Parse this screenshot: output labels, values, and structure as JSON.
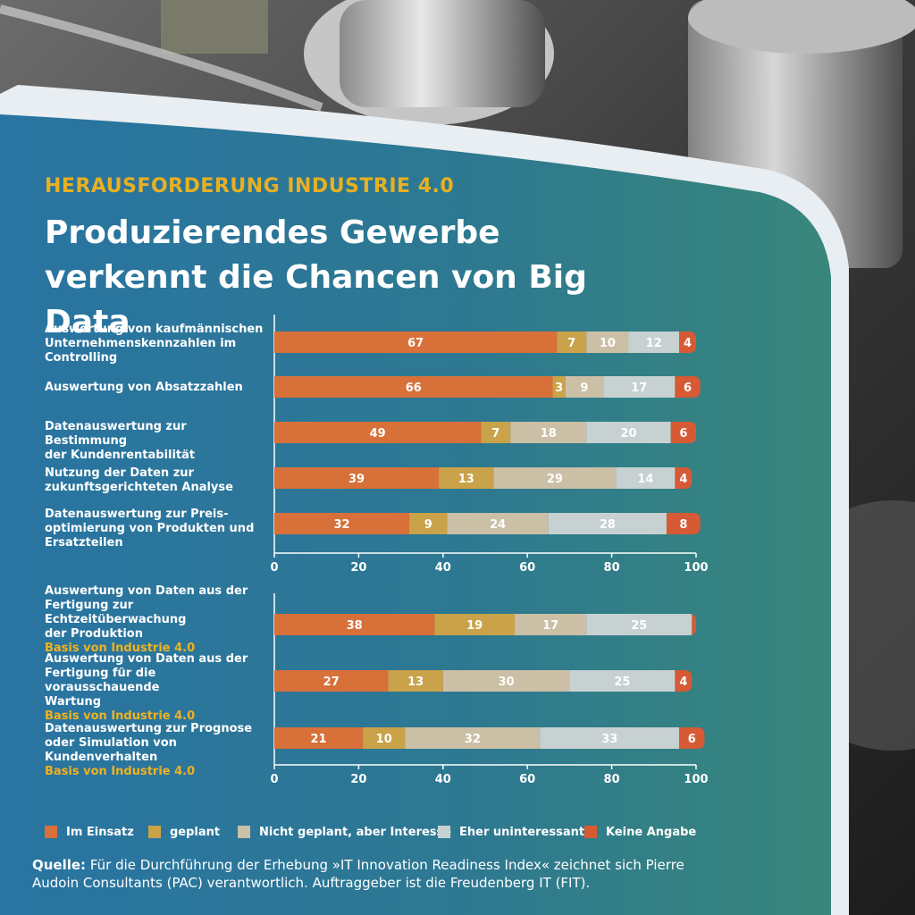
{
  "header": {
    "kicker": "HERAUSFORDERUNG INDUSTRIE 4.0",
    "title": "Produzierendes Gewerbe verkennt die Chancen von Big Data"
  },
  "colors": {
    "im_einsatz": "#d8703a",
    "geplant": "#c9a24a",
    "interesse": "#cbbfa6",
    "uninteressant": "#c7d1d2",
    "keine_angabe": "#d65a34",
    "kicker": "#e8b020",
    "basis": "#f0b21e"
  },
  "chart_data": [
    {
      "type": "bar",
      "orientation": "horizontal",
      "stacked": true,
      "categories": [
        "Auswertung von kaufmännischen Unternehmenskennzahlen im Controlling",
        "Auswertung von Absatzzahlen",
        "Datenauswertung zur Bestimmung der Kundenrentabilität",
        "Nutzung der Daten zur zukunftsgerichteten Analyse",
        "Datenauswertung zur Preisoptimierung von Produkten und Ersatzteilen"
      ],
      "label_lines": [
        [
          "Auswertung von kaufmännischen",
          "Unternehmenskennzahlen im",
          "Controlling"
        ],
        [
          "Auswertung von Absatzzahlen"
        ],
        [
          "Datenauswertung zur Bestimmung",
          "der Kundenrentabilität"
        ],
        [
          "Nutzung der Daten zur",
          "zukunftsgerichteten Analyse"
        ],
        [
          "Datenauswertung zur Preis-",
          "optimierung von Produkten und",
          "Ersatzteilen"
        ]
      ],
      "basis": [
        false,
        false,
        false,
        false,
        false
      ],
      "series": [
        {
          "name": "Im Einsatz",
          "values": [
            67,
            66,
            49,
            39,
            32
          ]
        },
        {
          "name": "geplant",
          "values": [
            7,
            3,
            7,
            13,
            9
          ]
        },
        {
          "name": "Nicht geplant, aber Interesse",
          "values": [
            10,
            9,
            18,
            29,
            24
          ]
        },
        {
          "name": "Eher uninteressant",
          "values": [
            12,
            17,
            20,
            14,
            28
          ]
        },
        {
          "name": "Keine Angabe",
          "values": [
            4,
            6,
            6,
            4,
            8
          ]
        }
      ],
      "xlim": [
        0,
        100
      ],
      "xticks": [
        0,
        20,
        40,
        60,
        80,
        100
      ]
    },
    {
      "type": "bar",
      "orientation": "horizontal",
      "stacked": true,
      "categories": [
        "Auswertung von Daten aus der Fertigung zur Echtzeitüberwachung der Produktion",
        "Auswertung von Daten aus der Fertigung für die vorausschauende Wartung",
        "Datenauswertung zur Prognose oder Simulation von Kundenverhalten"
      ],
      "label_lines": [
        [
          "Auswertung von Daten aus der",
          "Fertigung zur Echtzeitüberwachung",
          "der Produktion"
        ],
        [
          "Auswertung von Daten aus der",
          "Fertigung für die vorausschauende",
          "Wartung"
        ],
        [
          "Datenauswertung zur Prognose",
          "oder Simulation von Kundenverhalten"
        ]
      ],
      "basis": [
        true,
        true,
        true
      ],
      "basis_label": "Basis von Industrie 4.0",
      "series": [
        {
          "name": "Im Einsatz",
          "values": [
            38,
            27,
            21
          ]
        },
        {
          "name": "geplant",
          "values": [
            19,
            13,
            10
          ]
        },
        {
          "name": "Nicht geplant, aber Interesse",
          "values": [
            17,
            30,
            32
          ]
        },
        {
          "name": "Eher uninteressant",
          "values": [
            25,
            25,
            33
          ]
        },
        {
          "name": "Keine Angabe",
          "values": [
            1,
            4,
            6
          ]
        }
      ],
      "xlim": [
        0,
        100
      ],
      "xticks": [
        0,
        20,
        40,
        60,
        80,
        100
      ]
    }
  ],
  "legend": {
    "items": [
      "Im Einsatz",
      "geplant",
      "Nicht geplant, aber Interesse",
      "Eher uninteressant",
      "Keine Angabe"
    ]
  },
  "source": {
    "label": "Quelle:",
    "text": "Für die Durchführung der Erhebung »IT Innovation Readiness Index« zeichnet sich Pierre Audoin Consultants (PAC) verantwortlich. Auftraggeber ist die Freudenberg IT (FIT)."
  }
}
